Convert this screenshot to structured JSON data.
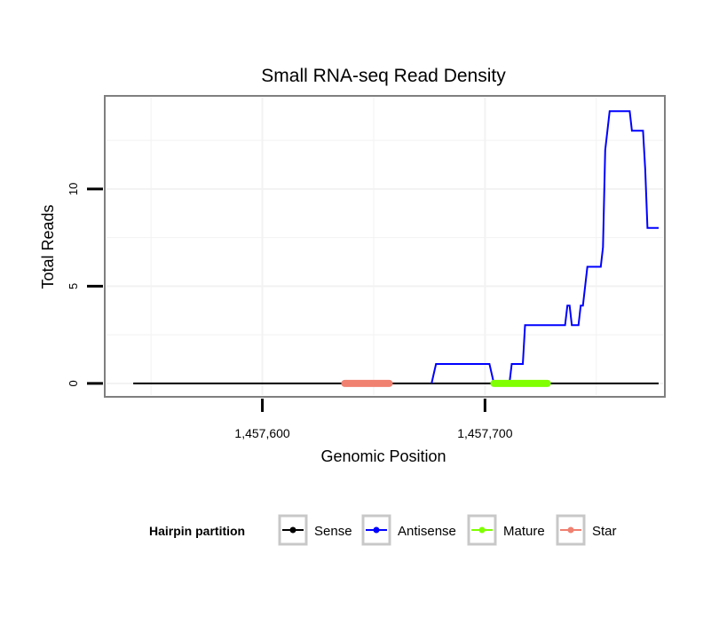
{
  "chart_data": {
    "type": "line",
    "title": "Small RNA-seq Read Density",
    "xlabel": "Genomic Position",
    "ylabel": "Total Reads",
    "xlim": [
      1457530,
      1457780
    ],
    "ylim": [
      -0.6,
      14.7
    ],
    "x_ticks": [
      {
        "value": 1457600,
        "label": "1,457,600"
      },
      {
        "value": 1457700,
        "label": "1,457,700"
      }
    ],
    "y_ticks": [
      {
        "value": 0,
        "label": "0"
      },
      {
        "value": 5,
        "label": "5"
      },
      {
        "value": 10,
        "label": "10"
      }
    ],
    "grid": true,
    "legend": {
      "title": "Hairpin partition",
      "placement": "bottom",
      "entries": [
        {
          "name": "Sense",
          "color": "#000000"
        },
        {
          "name": "Antisense",
          "color": "#0000ff"
        },
        {
          "name": "Mature",
          "color": "#7fff00"
        },
        {
          "name": "Star",
          "color": "#f08070"
        }
      ]
    },
    "series": [
      {
        "name": "Sense",
        "color": "#000000",
        "x": [
          1457542,
          1457778
        ],
        "y": [
          0,
          0
        ]
      },
      {
        "name": "Antisense",
        "color": "#0000ff",
        "x": [
          1457676,
          1457677,
          1457678,
          1457702,
          1457703,
          1457704,
          1457711,
          1457712,
          1457717,
          1457718,
          1457736,
          1457737,
          1457738,
          1457739,
          1457742,
          1457743,
          1457744,
          1457746,
          1457747,
          1457752,
          1457753,
          1457754,
          1457755,
          1457756,
          1457757,
          1457765,
          1457766,
          1457771,
          1457772,
          1457773,
          1457778
        ],
        "y": [
          0,
          0.5,
          1,
          1,
          0.5,
          0,
          0,
          1,
          1,
          3,
          3,
          4,
          4,
          3,
          3,
          4,
          4,
          6,
          6,
          6,
          7,
          12,
          13,
          14,
          14,
          14,
          13,
          13,
          11,
          8,
          8
        ]
      },
      {
        "name": "Mature",
        "color": "#7fff00",
        "x": [
          1457704,
          1457728
        ],
        "y": [
          0,
          0
        ]
      },
      {
        "name": "Star",
        "color": "#f08070",
        "x": [
          1457637,
          1457657
        ],
        "y": [
          0,
          0
        ]
      }
    ]
  }
}
